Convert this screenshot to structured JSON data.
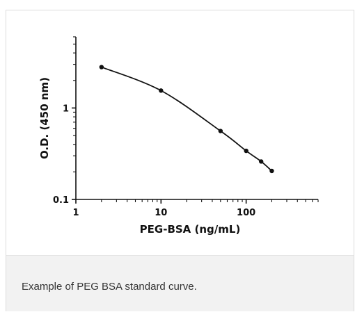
{
  "caption": "Example of PEG BSA standard curve.",
  "chart_data": {
    "type": "line",
    "xlabel": "PEG-BSA (ng/mL)",
    "ylabel": "O.D. (450 nm)",
    "xscale": "log",
    "yscale": "log",
    "xlim": [
      1,
      700
    ],
    "ylim": [
      0.1,
      6
    ],
    "x_ticks": [
      1,
      10,
      100
    ],
    "x_tick_labels": [
      "1",
      "10",
      "100"
    ],
    "y_ticks": [
      0.1,
      1
    ],
    "y_tick_labels": [
      "0.1",
      "1"
    ],
    "series": [
      {
        "x": [
          2,
          10,
          50,
          100,
          150,
          200
        ],
        "y": [
          2.8,
          1.55,
          0.56,
          0.34,
          0.26,
          0.205
        ]
      }
    ],
    "line_color": "#111111",
    "marker_color": "#111111"
  }
}
